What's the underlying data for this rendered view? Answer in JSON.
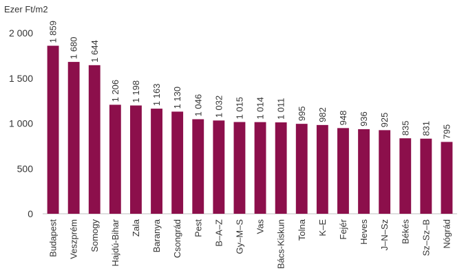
{
  "chart_data": {
    "type": "bar",
    "ylabel": "Ezer Ft/m2",
    "ylim": [
      0,
      2000
    ],
    "yticks": [
      0,
      500,
      1000,
      1500,
      2000
    ],
    "ytick_labels": [
      "0",
      "500",
      "1 000",
      "1 500",
      "2 000"
    ],
    "grid": false,
    "bar_color": "#8C0F4B",
    "categories": [
      "Budapest",
      "Veszprém",
      "Somogy",
      "Hajdú-Bihar",
      "Zala",
      "Baranya",
      "Csongrád",
      "Pest",
      "B–A–Z",
      "Gy–M–S",
      "Vas",
      "Bács-Kiskun",
      "Tolna",
      "K–E",
      "Fejér",
      "Heves",
      "J–N–Sz",
      "Békés",
      "Sz–Sz–B",
      "Nógrád"
    ],
    "values": [
      1859,
      1680,
      1644,
      1206,
      1198,
      1163,
      1130,
      1046,
      1032,
      1015,
      1014,
      1011,
      995,
      982,
      948,
      936,
      925,
      835,
      831,
      795
    ],
    "value_labels": [
      "1 859",
      "1 680",
      "1 644",
      "1 206",
      "1 198",
      "1 163",
      "1 130",
      "1 046",
      "1 032",
      "1 015",
      "1 014",
      "1 011",
      "995",
      "982",
      "948",
      "936",
      "925",
      "835",
      "831",
      "795"
    ]
  }
}
